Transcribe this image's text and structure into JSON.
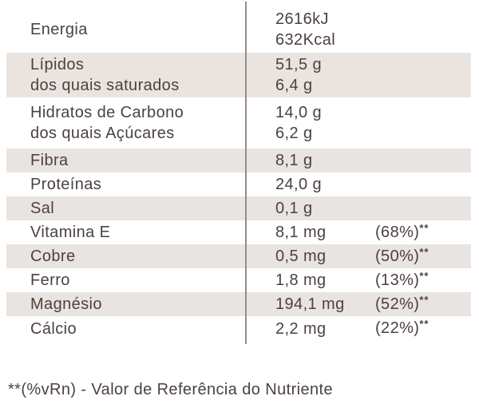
{
  "table": {
    "rows": [
      {
        "label": "Energia",
        "label2": "",
        "value": "2616kJ",
        "value2": "632Kcal",
        "percent": "",
        "percent_sup": "",
        "shaded": false
      },
      {
        "label": "Lípidos",
        "label2": "dos quais saturados",
        "value": "51,5 g",
        "value2": "6,4 g",
        "percent": "",
        "percent_sup": "",
        "shaded": true
      },
      {
        "label": "Hidratos de Carbono",
        "label2": "dos quais Açúcares",
        "value": "14,0 g",
        "value2": "6,2 g",
        "percent": "",
        "percent_sup": "",
        "shaded": false
      },
      {
        "label": "Fibra",
        "label2": "",
        "value": "8,1 g",
        "value2": "",
        "percent": "",
        "percent_sup": "",
        "shaded": true
      },
      {
        "label": "Proteínas",
        "label2": "",
        "value": "24,0 g",
        "value2": "",
        "percent": "",
        "percent_sup": "",
        "shaded": false
      },
      {
        "label": "Sal",
        "label2": "",
        "value": "0,1 g",
        "value2": "",
        "percent": "",
        "percent_sup": "",
        "shaded": true
      },
      {
        "label": "Vitamina E",
        "label2": "",
        "value": "8,1 mg",
        "value2": "",
        "percent": "(68%)",
        "percent_sup": "**",
        "shaded": false
      },
      {
        "label": "Cobre",
        "label2": "",
        "value": "0,5 mg",
        "value2": "",
        "percent": "(50%)",
        "percent_sup": "**",
        "shaded": true
      },
      {
        "label": "Ferro",
        "label2": "",
        "value": "1,8 mg",
        "value2": "",
        "percent": "(13%)",
        "percent_sup": "**",
        "shaded": false
      },
      {
        "label": "Magnésio",
        "label2": "",
        "value": "194,1 mg",
        "value2": "",
        "percent": "(52%)",
        "percent_sup": "**",
        "shaded": true
      },
      {
        "label": "Cálcio",
        "label2": "",
        "value": "2,2 mg",
        "value2": "",
        "percent": "(22%)",
        "percent_sup": "**",
        "shaded": false
      }
    ],
    "footnote": "**(%vRn) - Valor de Referência do Nutriente"
  },
  "colors": {
    "background": "#FFFFFF",
    "shaded_row": "#EAE4E1",
    "text": "#4B423E",
    "divider": "#9A8A84"
  }
}
